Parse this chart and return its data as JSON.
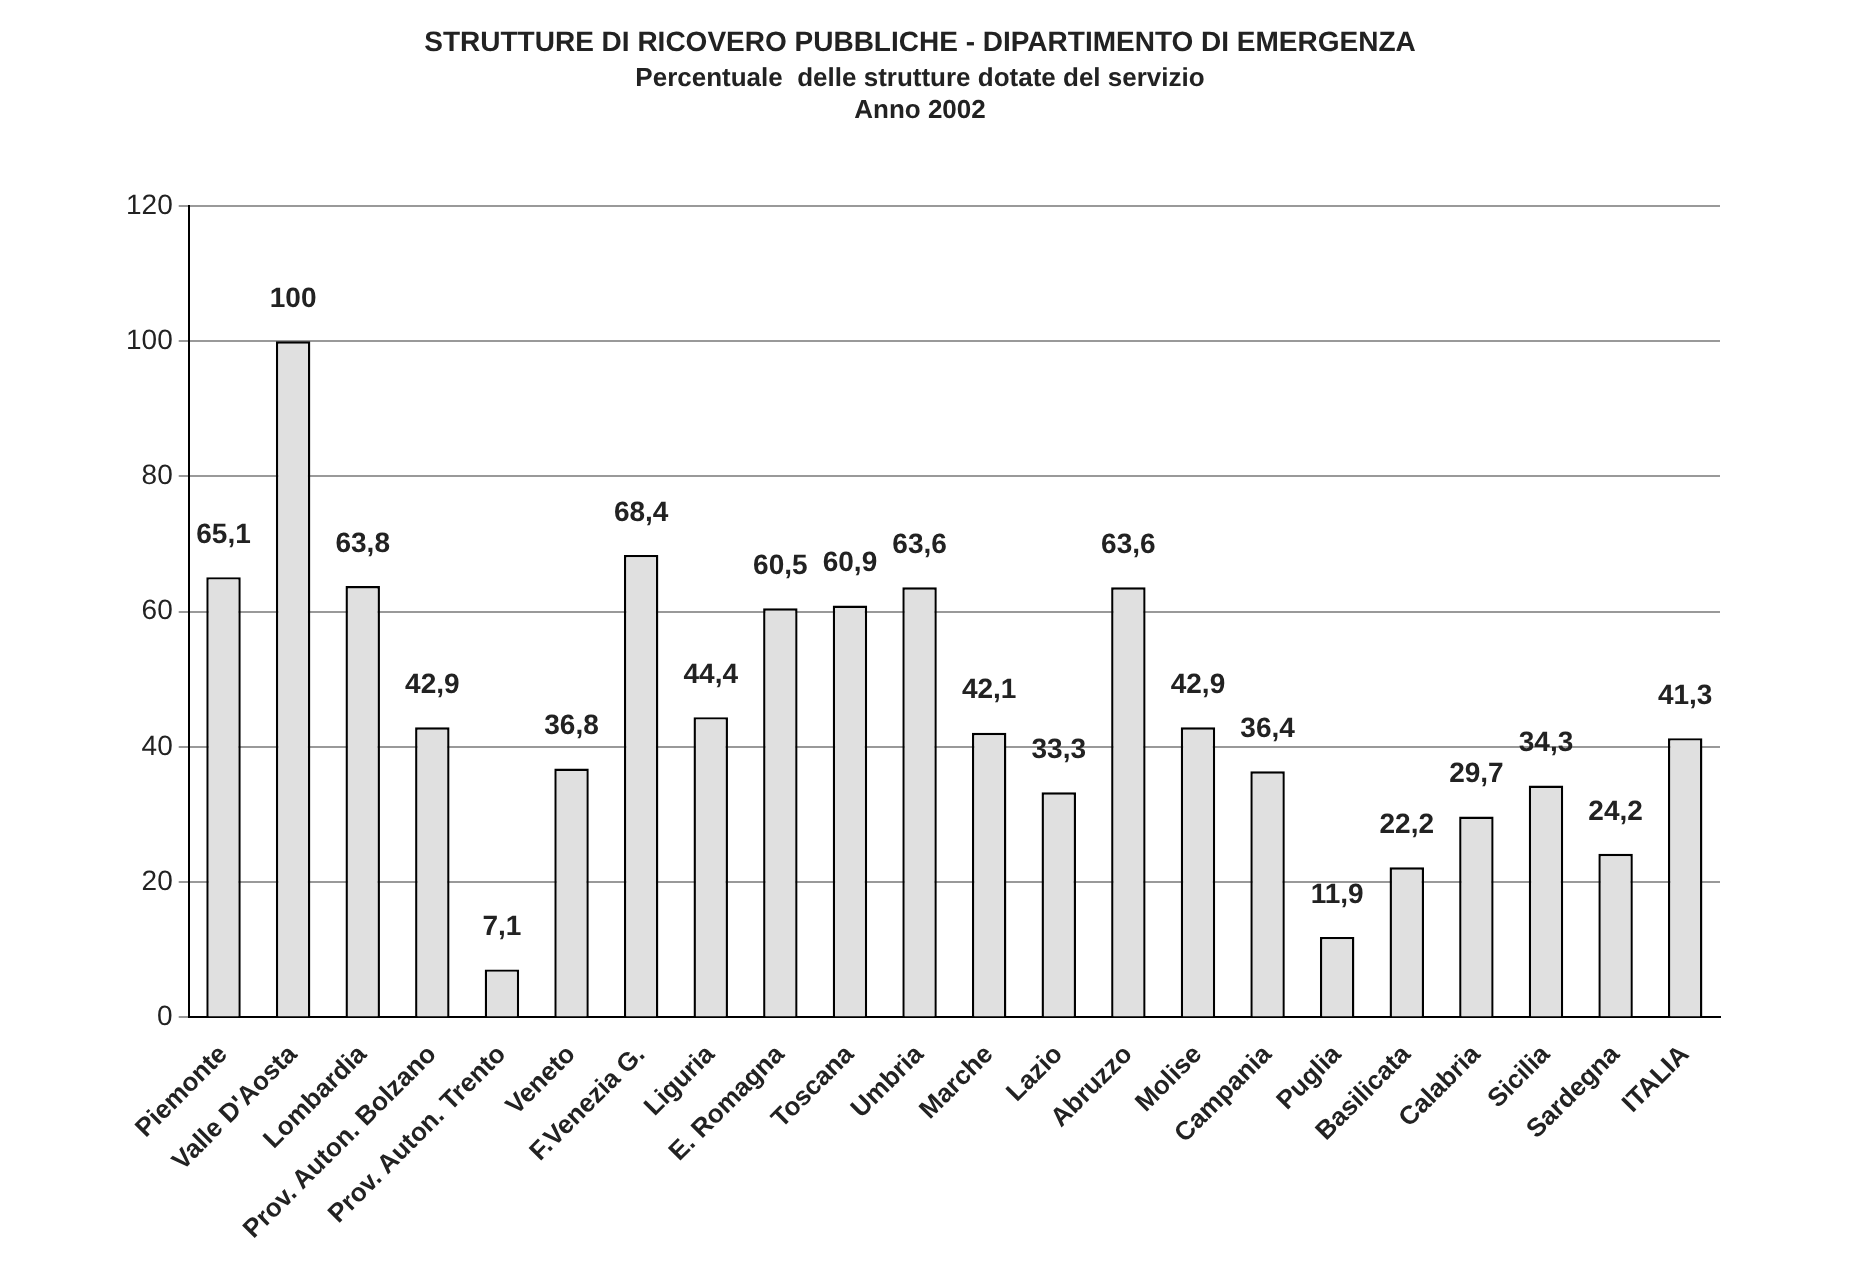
{
  "chart_data": {
    "type": "bar",
    "title": "STRUTTURE DI RICOVERO PUBBLICHE - DIPARTIMENTO DI EMERGENZA",
    "subtitle": "Percentuale  delle strutture dotate del servizio\nAnno 2002",
    "categories": [
      "Piemonte",
      "Valle D'Aosta",
      "Lombardia",
      "Prov. Auton. Bolzano",
      "Prov. Auton. Trento",
      "Veneto",
      "F.Venezia G.",
      "Liguria",
      "E. Romagna",
      "Toscana",
      "Umbria",
      "Marche",
      "Lazio",
      "Abruzzo",
      "Molise",
      "Campania",
      "Puglia",
      "Basilicata",
      "Calabria",
      "Sicilia",
      "Sardegna",
      "ITALIA"
    ],
    "values": [
      65.1,
      100,
      63.8,
      42.9,
      7.1,
      36.8,
      68.4,
      44.4,
      60.5,
      60.9,
      63.6,
      42.1,
      33.3,
      63.6,
      42.9,
      36.4,
      11.9,
      22.2,
      29.7,
      34.3,
      24.2,
      41.3
    ],
    "value_labels": [
      "65,1",
      "100",
      "63,8",
      "42,9",
      "7,1",
      "36,8",
      "68,4",
      "44,4",
      "60,5",
      "60,9",
      "63,6",
      "42,1",
      "33,3",
      "63,6",
      "42,9",
      "36,4",
      "11,9",
      "22,2",
      "29,7",
      "34,3",
      "24,2",
      "41,3"
    ],
    "color": "#e0e0e0",
    "ylim": [
      0,
      120
    ],
    "yticks": [
      0,
      20,
      40,
      60,
      80,
      100,
      120
    ],
    "grid": "y",
    "legend": false
  }
}
